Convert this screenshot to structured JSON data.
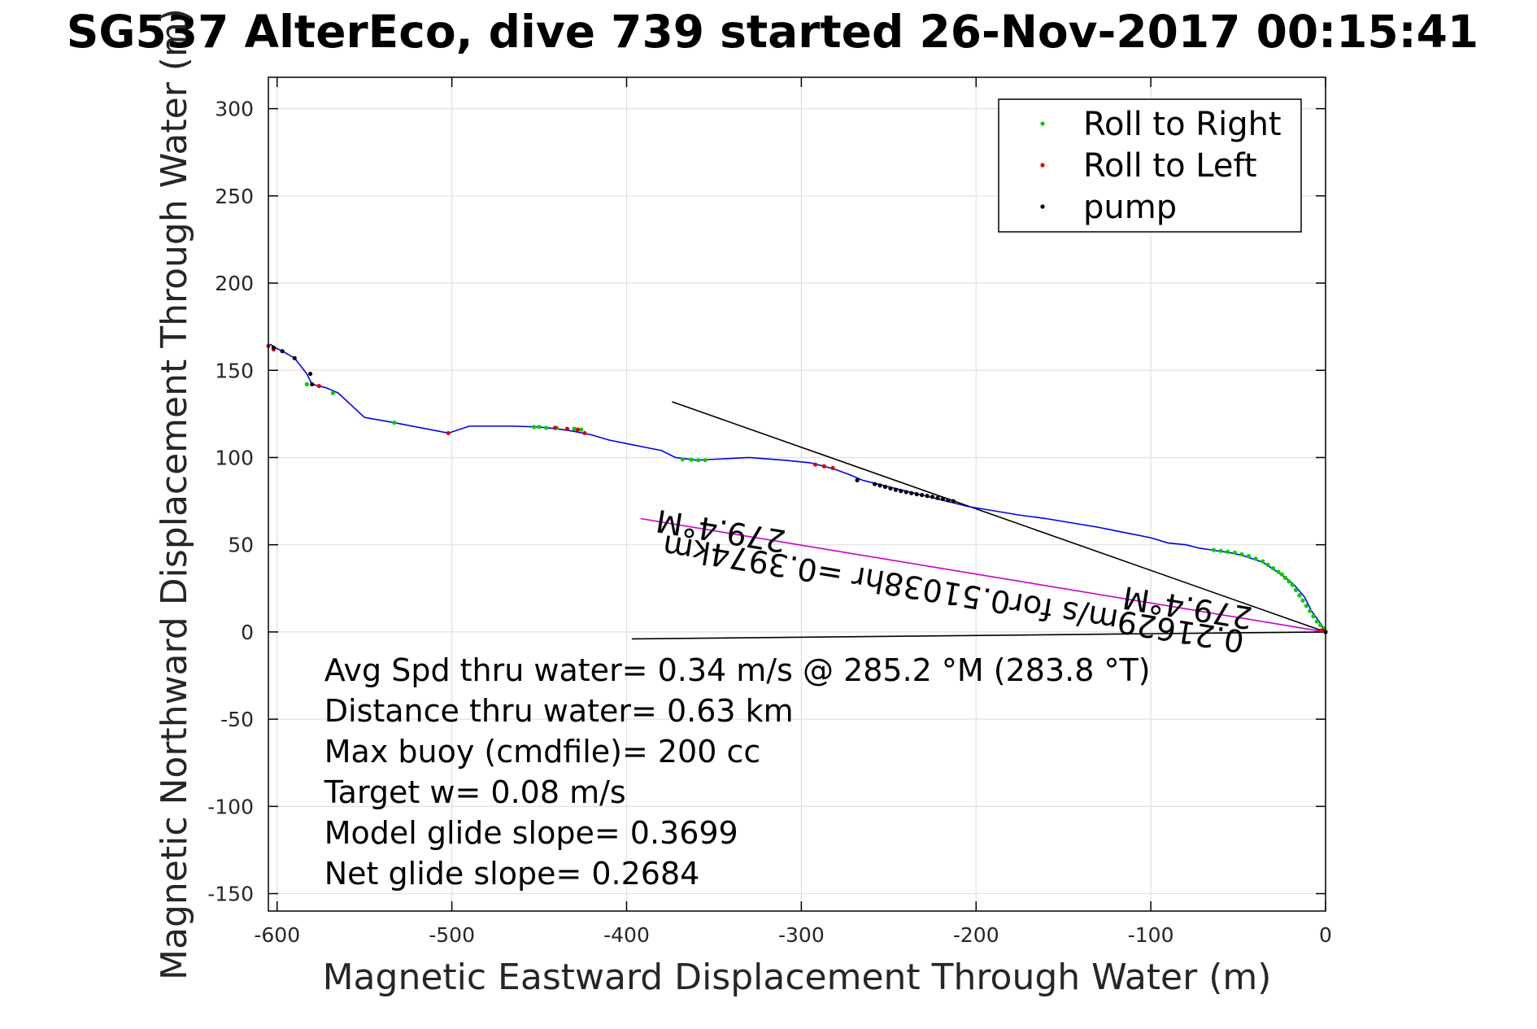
{
  "chart_data": {
    "type": "line",
    "title": "SG537 AlterEco, dive 739 started 26-Nov-2017 00:15:41",
    "xlabel": "Magnetic Eastward Displacement Through Water (m)",
    "ylabel": "Magnetic Northward Displacement Through Water (m)",
    "xlim": [
      -605,
      0
    ],
    "ylim": [
      -160,
      318
    ],
    "xticks": [
      -600,
      -500,
      -400,
      -300,
      -200,
      -100,
      0
    ],
    "yticks": [
      -150,
      -100,
      -50,
      0,
      50,
      100,
      150,
      200,
      250,
      300
    ],
    "grid": true,
    "legend_position": "top-right",
    "legend": [
      {
        "label": "Roll to Right",
        "color": "#00cc00"
      },
      {
        "label": "Roll to Left",
        "color": "#dd0000"
      },
      {
        "label": "pump",
        "color": "#000000"
      }
    ],
    "track": {
      "color": "#0000ee",
      "x": [
        0,
        -3,
        -8,
        -12,
        -18,
        -24,
        -30,
        -36,
        -42,
        -48,
        -55,
        -62,
        -65,
        -72,
        -80,
        -90,
        -100,
        -110,
        -120,
        -130,
        -145,
        -160,
        -175,
        -190,
        -205,
        -215,
        -225,
        -235,
        -245,
        -255,
        -265,
        -272,
        -280,
        -287,
        -295,
        -310,
        -330,
        -350,
        -360,
        -372,
        -380,
        -390,
        -400,
        -410,
        -420,
        -430,
        -440,
        -450,
        -465,
        -490,
        -502,
        -533,
        -550,
        -565,
        -572,
        -580,
        -583,
        -590,
        -597,
        -601,
        -604
      ],
      "y": [
        0,
        5,
        12,
        20,
        27,
        32,
        36,
        40,
        42,
        44,
        45.5,
        46.5,
        47,
        48,
        50,
        51,
        54,
        56,
        58,
        60,
        62.5,
        65,
        67,
        69.5,
        72,
        74.5,
        77,
        79.5,
        82,
        84.5,
        87,
        90,
        93,
        95,
        97,
        98.5,
        100,
        99,
        98.5,
        100,
        104,
        106,
        108,
        110,
        113,
        115,
        116.5,
        117.5,
        118,
        118,
        114,
        120,
        123,
        137,
        140,
        142,
        148,
        157,
        161,
        163,
        165
      ]
    },
    "roll_right_points": {
      "x": [
        -1,
        -3,
        -5,
        -7,
        -9,
        -11,
        -13,
        -15,
        -17,
        -19,
        -21,
        -23,
        -25,
        -27,
        -30,
        -33,
        -36,
        -40,
        -44,
        -48,
        -52,
        -56,
        -60,
        -64,
        -355,
        -359,
        -363,
        -368,
        -426,
        -430,
        -440,
        -446,
        -450,
        -453,
        -533,
        -568,
        -583
      ],
      "y": [
        2,
        4,
        6,
        9,
        12,
        15,
        18,
        21,
        24,
        27,
        29,
        31,
        33,
        34.5,
        36.5,
        38.5,
        40.5,
        42,
        43.5,
        44.5,
        45.5,
        46,
        46.5,
        47,
        98.5,
        98.5,
        98.8,
        99,
        116,
        116.5,
        117,
        117,
        117.5,
        117.5,
        120,
        137,
        142
      ]
    },
    "roll_left_points": {
      "x": [
        0,
        -1,
        -2,
        -282,
        -287,
        -292,
        -424,
        -428,
        -434,
        -441,
        -502,
        -576,
        -602,
        -605
      ],
      "y": [
        0,
        0.5,
        1,
        94,
        95,
        96,
        114,
        116,
        116.5,
        117,
        114,
        141,
        162,
        164
      ],
      "label_point": [
        -150,
        24.3
      ]
    },
    "pump_points": {
      "x": [
        0,
        -213,
        -216,
        -219,
        -222,
        -225,
        -228,
        -231,
        -234,
        -237,
        -240,
        -243,
        -246,
        -249,
        -252,
        -255,
        -258,
        -268,
        -580,
        -581,
        -590,
        -597,
        -602
      ],
      "y": [
        0,
        75,
        75.5,
        76.2,
        76.8,
        77.5,
        78,
        78.5,
        79,
        79.6,
        80.2,
        80.8,
        81.5,
        82.3,
        83.2,
        84,
        84.8,
        87,
        142,
        148,
        157,
        161,
        163
      ]
    },
    "heading_lines": [
      {
        "color": "#000000",
        "x": [
          0,
          -374
        ],
        "y": [
          0,
          132
        ]
      },
      {
        "color": "#000000",
        "x": [
          0,
          -397
        ],
        "y": [
          0,
          -4
        ]
      },
      {
        "color": "#cc00cc",
        "x": [
          0,
          -392
        ],
        "y": [
          0,
          65
        ]
      }
    ],
    "annotations": {
      "bearing_label_1": "279.4°M",
      "bearing_label_2": "279.4°M",
      "current_label": "0.21629m/s for0.51038hr =0.3974km",
      "stats": [
        "Avg Spd thru water=  0.34 m/s @ 285.2 °M (283.8 °T)",
        "Distance thru water=  0.63 km",
        "Max buoy (cmdfile)= 200 cc",
        "Target w= 0.08 m/s",
        "Model glide slope= 0.3699",
        "Net glide slope= 0.2684"
      ]
    }
  }
}
